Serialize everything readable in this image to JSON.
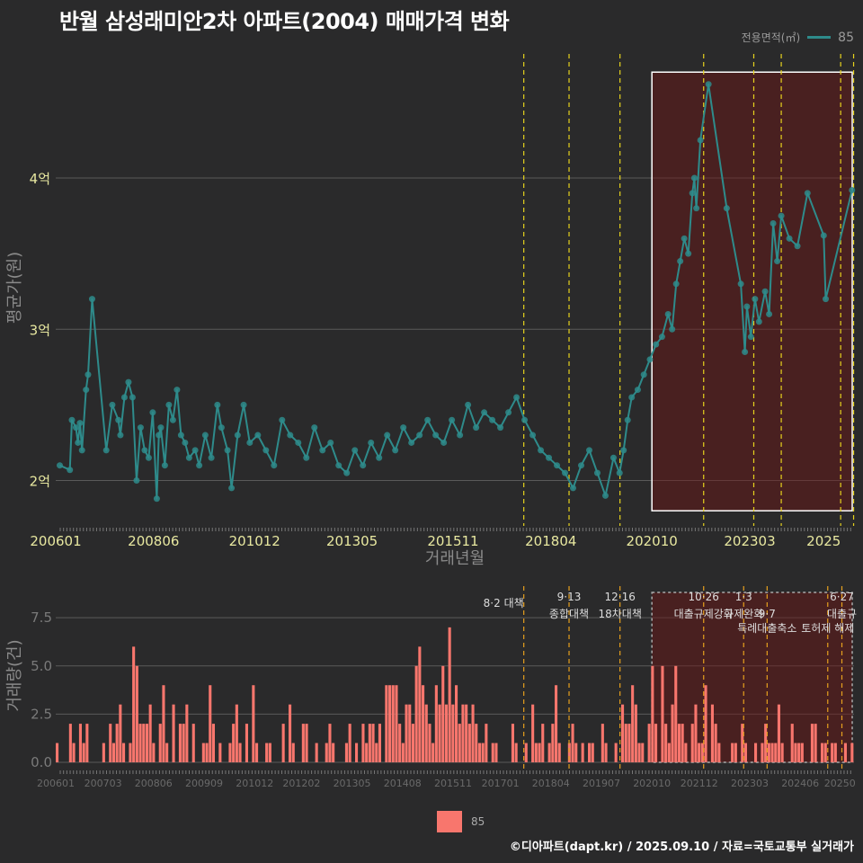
{
  "title": "반월 삼성래미안2차 아파트(2004) 매매가격 변화",
  "legend": {
    "title": "전용면적(㎡)",
    "series_name": "85",
    "line_color": "#2e8b8b",
    "bar_color": "#f8766d"
  },
  "credit": "©디아파트(dapt.kr) / 2025.09.10 / 자료=국토교통부 실거래가",
  "chart_data": [
    {
      "type": "line",
      "role": "price",
      "xlabel": "거래년월",
      "ylabel": "평균가(원)",
      "x_ticks": [
        "200601",
        "200806",
        "201012",
        "201305",
        "201511",
        "201804",
        "202010",
        "202303",
        "2025"
      ],
      "y_ticks": [
        {
          "value": 2,
          "label": "2억"
        },
        {
          "value": 3,
          "label": "3억"
        },
        {
          "value": 4,
          "label": "4억"
        }
      ],
      "ylim": [
        1.7,
        4.85
      ],
      "xlim": [
        2006.0,
        2025.75
      ],
      "grid": true,
      "highlight_region": {
        "x_from": 2020.75,
        "x_to": 2025.75,
        "y_from": 1.8,
        "y_to": 4.7
      },
      "policy_lines": [
        2017.58,
        2018.7,
        2019.96,
        2022.03,
        2023.27,
        2023.95,
        2025.42,
        2025.74
      ],
      "series": [
        {
          "name": "85",
          "points": [
            [
              2006.1,
              2.1
            ],
            [
              2006.35,
              2.07
            ],
            [
              2006.4,
              2.4
            ],
            [
              2006.5,
              2.35
            ],
            [
              2006.55,
              2.25
            ],
            [
              2006.6,
              2.38
            ],
            [
              2006.65,
              2.2
            ],
            [
              2006.75,
              2.6
            ],
            [
              2006.8,
              2.7
            ],
            [
              2006.9,
              3.2
            ],
            [
              2007.25,
              2.2
            ],
            [
              2007.4,
              2.5
            ],
            [
              2007.55,
              2.4
            ],
            [
              2007.6,
              2.3
            ],
            [
              2007.7,
              2.55
            ],
            [
              2007.8,
              2.65
            ],
            [
              2007.9,
              2.55
            ],
            [
              2008.0,
              2.0
            ],
            [
              2008.1,
              2.35
            ],
            [
              2008.2,
              2.2
            ],
            [
              2008.3,
              2.15
            ],
            [
              2008.4,
              2.45
            ],
            [
              2008.5,
              1.88
            ],
            [
              2008.55,
              2.3
            ],
            [
              2008.6,
              2.35
            ],
            [
              2008.7,
              2.1
            ],
            [
              2008.8,
              2.5
            ],
            [
              2008.9,
              2.4
            ],
            [
              2009.0,
              2.6
            ],
            [
              2009.1,
              2.3
            ],
            [
              2009.2,
              2.25
            ],
            [
              2009.3,
              2.15
            ],
            [
              2009.45,
              2.2
            ],
            [
              2009.55,
              2.1
            ],
            [
              2009.7,
              2.3
            ],
            [
              2009.85,
              2.15
            ],
            [
              2010.0,
              2.5
            ],
            [
              2010.1,
              2.35
            ],
            [
              2010.25,
              2.2
            ],
            [
              2010.35,
              1.95
            ],
            [
              2010.5,
              2.3
            ],
            [
              2010.65,
              2.5
            ],
            [
              2010.8,
              2.25
            ],
            [
              2011.0,
              2.3
            ],
            [
              2011.2,
              2.2
            ],
            [
              2011.4,
              2.1
            ],
            [
              2011.6,
              2.4
            ],
            [
              2011.8,
              2.3
            ],
            [
              2012.0,
              2.25
            ],
            [
              2012.2,
              2.15
            ],
            [
              2012.4,
              2.35
            ],
            [
              2012.6,
              2.2
            ],
            [
              2012.8,
              2.25
            ],
            [
              2013.0,
              2.1
            ],
            [
              2013.2,
              2.05
            ],
            [
              2013.4,
              2.2
            ],
            [
              2013.6,
              2.1
            ],
            [
              2013.8,
              2.25
            ],
            [
              2014.0,
              2.15
            ],
            [
              2014.2,
              2.3
            ],
            [
              2014.4,
              2.2
            ],
            [
              2014.6,
              2.35
            ],
            [
              2014.8,
              2.25
            ],
            [
              2015.0,
              2.3
            ],
            [
              2015.2,
              2.4
            ],
            [
              2015.4,
              2.3
            ],
            [
              2015.6,
              2.25
            ],
            [
              2015.8,
              2.4
            ],
            [
              2016.0,
              2.3
            ],
            [
              2016.2,
              2.5
            ],
            [
              2016.4,
              2.35
            ],
            [
              2016.6,
              2.45
            ],
            [
              2016.8,
              2.4
            ],
            [
              2017.0,
              2.35
            ],
            [
              2017.2,
              2.45
            ],
            [
              2017.4,
              2.55
            ],
            [
              2017.6,
              2.4
            ],
            [
              2017.8,
              2.3
            ],
            [
              2018.0,
              2.2
            ],
            [
              2018.2,
              2.15
            ],
            [
              2018.4,
              2.1
            ],
            [
              2018.6,
              2.05
            ],
            [
              2018.8,
              1.95
            ],
            [
              2019.0,
              2.1
            ],
            [
              2019.2,
              2.2
            ],
            [
              2019.4,
              2.05
            ],
            [
              2019.6,
              1.9
            ],
            [
              2019.8,
              2.15
            ],
            [
              2019.95,
              2.05
            ],
            [
              2020.05,
              2.2
            ],
            [
              2020.15,
              2.4
            ],
            [
              2020.25,
              2.55
            ],
            [
              2020.4,
              2.6
            ],
            [
              2020.55,
              2.7
            ],
            [
              2020.7,
              2.8
            ],
            [
              2020.85,
              2.9
            ],
            [
              2021.0,
              2.95
            ],
            [
              2021.15,
              3.1
            ],
            [
              2021.25,
              3.0
            ],
            [
              2021.35,
              3.3
            ],
            [
              2021.45,
              3.45
            ],
            [
              2021.55,
              3.6
            ],
            [
              2021.65,
              3.5
            ],
            [
              2021.75,
              3.9
            ],
            [
              2021.8,
              4.0
            ],
            [
              2021.85,
              3.8
            ],
            [
              2021.95,
              4.25
            ],
            [
              2022.15,
              4.62
            ],
            [
              2022.6,
              3.8
            ],
            [
              2022.95,
              3.3
            ],
            [
              2023.05,
              2.85
            ],
            [
              2023.1,
              3.15
            ],
            [
              2023.2,
              2.95
            ],
            [
              2023.3,
              3.2
            ],
            [
              2023.4,
              3.05
            ],
            [
              2023.55,
              3.25
            ],
            [
              2023.65,
              3.1
            ],
            [
              2023.75,
              3.7
            ],
            [
              2023.85,
              3.45
            ],
            [
              2023.95,
              3.75
            ],
            [
              2024.15,
              3.6
            ],
            [
              2024.35,
              3.55
            ],
            [
              2024.6,
              3.9
            ],
            [
              2025.0,
              3.62
            ],
            [
              2025.05,
              3.2
            ],
            [
              2025.7,
              3.92
            ]
          ]
        }
      ]
    },
    {
      "type": "bar",
      "role": "volume",
      "ylabel": "거래량(건)",
      "x_ticks": [
        "200601",
        "200703",
        "200806",
        "200909",
        "201012",
        "201202",
        "201305",
        "201408",
        "201511",
        "201701",
        "201804",
        "201907",
        "202010",
        "202112",
        "202303",
        "202406",
        "20250"
      ],
      "y_ticks": [
        0.0,
        2.5,
        5.0,
        7.5
      ],
      "ylim": [
        0,
        9
      ],
      "series": [
        {
          "name": "85",
          "values": [
            1,
            0,
            0,
            0,
            2,
            1,
            0,
            2,
            1,
            2,
            0,
            0,
            0,
            0,
            1,
            0,
            2,
            1,
            2,
            3,
            1,
            0,
            1,
            6,
            5,
            2,
            2,
            2,
            3,
            1,
            0,
            2,
            4,
            1,
            0,
            3,
            0,
            2,
            2,
            3,
            0,
            2,
            0,
            0,
            1,
            1,
            4,
            2,
            0,
            1,
            0,
            0,
            1,
            2,
            3,
            1,
            0,
            2,
            0,
            4,
            1,
            0,
            0,
            1,
            1,
            0,
            0,
            0,
            2,
            0,
            3,
            1,
            0,
            0,
            2,
            2,
            0,
            0,
            1,
            0,
            0,
            1,
            2,
            1,
            0,
            0,
            0,
            1,
            2,
            0,
            1,
            0,
            2,
            1,
            2,
            2,
            1,
            2,
            0,
            4,
            4,
            4,
            4,
            2,
            1,
            3,
            3,
            2,
            5,
            6,
            4,
            3,
            2,
            1,
            4,
            3,
            5,
            3,
            7,
            3,
            4,
            2,
            3,
            3,
            2,
            3,
            2,
            1,
            1,
            2,
            0,
            1,
            1,
            0,
            0,
            0,
            0,
            2,
            1,
            0,
            0,
            1,
            0,
            3,
            1,
            1,
            2,
            0,
            1,
            2,
            4,
            1,
            0,
            0,
            1,
            2,
            1,
            0,
            1,
            0,
            1,
            1,
            0,
            0,
            2,
            1,
            0,
            0,
            1,
            0,
            3,
            2,
            2,
            4,
            3,
            1,
            1,
            0,
            2,
            5,
            2,
            0,
            5,
            2,
            1,
            3,
            5,
            2,
            2,
            1,
            0,
            2,
            3,
            1,
            1,
            4,
            0,
            3,
            2,
            1,
            0,
            0,
            0,
            1,
            1,
            0,
            2,
            1,
            0,
            0,
            1,
            0,
            1,
            2,
            1,
            1,
            1,
            3,
            1,
            0,
            0,
            2,
            1,
            1,
            1,
            0,
            0,
            2,
            2,
            0,
            1,
            1,
            0,
            1,
            1,
            0,
            0,
            1,
            0,
            1
          ]
        }
      ],
      "annotations": [
        {
          "date": "8·2 대책",
          "x": 2017.58
        },
        {
          "date": "9·13",
          "text": "종합대책",
          "x": 2018.7
        },
        {
          "date": "12·16",
          "text": "18차대책",
          "x": 2019.96
        },
        {
          "date": "10·26",
          "text": "대출규제강화",
          "x": 2022.03
        },
        {
          "date": "1·3",
          "text": "규제완화",
          "x": 2023.02
        },
        {
          "date": "9·7",
          "text": "특례대출축소",
          "x": 2023.6
        },
        {
          "date": "토허제 해제",
          "x": 2025.1
        },
        {
          "date": "6·27",
          "text": "대출규",
          "x": 2025.45
        }
      ]
    }
  ]
}
